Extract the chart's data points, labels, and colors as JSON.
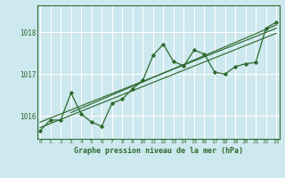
{
  "title": "Graphe pression niveau de la mer (hPa)",
  "bg_color": "#cde8ee",
  "grid_color": "#ffffff",
  "line_color": "#2d6a2d",
  "x_labels": [
    "0",
    "1",
    "2",
    "3",
    "4",
    "5",
    "6",
    "7",
    "8",
    "9",
    "10",
    "11",
    "12",
    "13",
    "14",
    "15",
    "16",
    "17",
    "18",
    "19",
    "20",
    "21",
    "22",
    "23"
  ],
  "y_ticks": [
    1016,
    1017,
    1018
  ],
  "ylim": [
    1015.45,
    1018.65
  ],
  "xlim": [
    -0.3,
    23.3
  ],
  "main_series": [
    1015.65,
    1015.9,
    1015.9,
    1016.55,
    1016.05,
    1015.85,
    1015.75,
    1016.3,
    1016.4,
    1016.65,
    1016.85,
    1017.45,
    1017.72,
    1017.3,
    1017.2,
    1017.58,
    1017.48,
    1017.05,
    1017.0,
    1017.18,
    1017.25,
    1017.28,
    1018.1,
    1018.25
  ],
  "trend_line1": [
    0,
    1015.85,
    23,
    1018.1
  ],
  "trend_line2": [
    0,
    1015.72,
    23,
    1017.98
  ],
  "trend_line3": [
    3,
    1016.08,
    23,
    1018.18
  ],
  "xlabel_fontsize": 6.0,
  "ytick_fontsize": 5.5,
  "xtick_fontsize": 4.5
}
